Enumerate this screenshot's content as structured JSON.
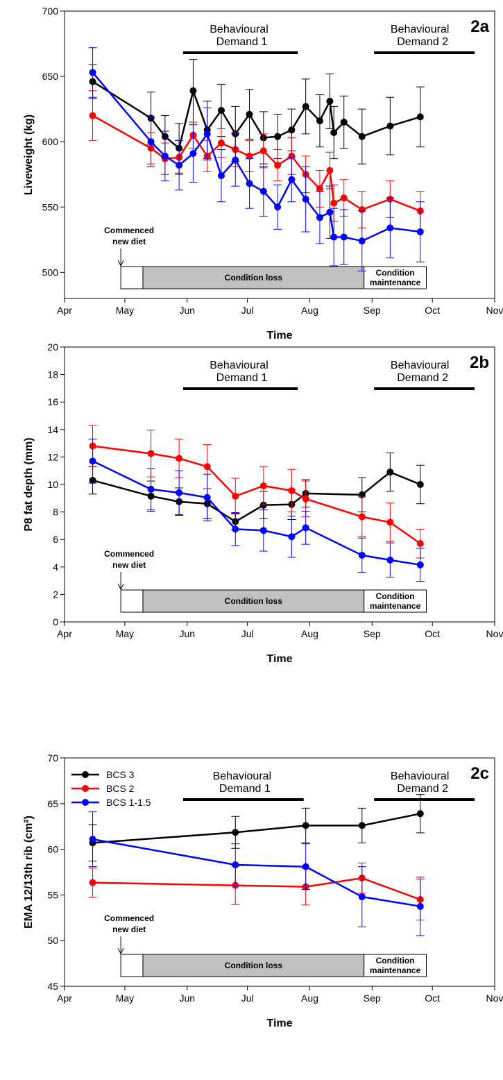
{
  "months": [
    "Apr",
    "May",
    "Jun",
    "Jul",
    "Aug",
    "Sep",
    "Oct",
    "Nov"
  ],
  "series_colors": {
    "BCS 3": "#000000",
    "BCS 2": "#ff0000",
    "BCS 1-1.5": "#0000ff"
  },
  "chart_data": [
    {
      "id": "2a",
      "panel_label": "2a",
      "type": "line",
      "xlabel": "Time",
      "ylabel": "Liveweight (kg)",
      "ylim": [
        480,
        700
      ],
      "yticks": [
        500,
        550,
        600,
        650,
        700
      ],
      "xlim": [
        "2000-04-01",
        "2000-11-01"
      ],
      "x_tick_labels": [
        "Apr",
        "May",
        "Jun",
        "Jul",
        "Aug",
        "Sep",
        "Oct",
        "Nov"
      ],
      "behavioural_demands": [
        {
          "label_line1": "Behavioural",
          "label_line2": "Demand 1",
          "start": "2000-05-30",
          "end": "2000-07-26"
        },
        {
          "label_line1": "Behavioural",
          "label_line2": "Demand 2",
          "start": "2000-09-02",
          "end": "2000-10-22"
        }
      ],
      "diet_annotation": {
        "line1": "Commenced",
        "line2": "new diet",
        "date": "2000-04-29"
      },
      "phases": [
        {
          "label": "",
          "start": "2000-04-29",
          "end": "2000-05-10",
          "fill": "#ffffff"
        },
        {
          "label": "Condition loss",
          "start": "2000-05-10",
          "end": "2000-08-28",
          "fill": "#c0c0c0"
        },
        {
          "label_line1": "Condition",
          "label_line2": "maintenance",
          "start": "2000-08-28",
          "end": "2000-09-28",
          "fill": "#ffffff"
        }
      ],
      "series": [
        {
          "name": "BCS 3",
          "points": [
            [
              "2000-04-15",
              646,
              13
            ],
            [
              "2000-05-14",
              618,
              20
            ],
            [
              "2000-05-21",
              604,
              16
            ],
            [
              "2000-05-28",
              595,
              19
            ],
            [
              "2000-06-04",
              639,
              24
            ],
            [
              "2000-06-11",
              609,
              22
            ],
            [
              "2000-06-18",
              624,
              20
            ],
            [
              "2000-06-25",
              606,
              21
            ],
            [
              "2000-07-02",
              621,
              19
            ],
            [
              "2000-07-09",
              603,
              20
            ],
            [
              "2000-07-16",
              604,
              17
            ],
            [
              "2000-07-23",
              609,
              16
            ],
            [
              "2000-07-30",
              627,
              21
            ],
            [
              "2000-08-06",
              616,
              20
            ],
            [
              "2000-08-11",
              631,
              21
            ],
            [
              "2000-08-13",
              607,
              20
            ],
            [
              "2000-08-18",
              615,
              20
            ],
            [
              "2000-08-27",
              604,
              21
            ],
            [
              "2000-09-10",
              612,
              22
            ],
            [
              "2000-09-25",
              619,
              23
            ]
          ]
        },
        {
          "name": "BCS 2",
          "points": [
            [
              "2000-04-15",
              620,
              19
            ],
            [
              "2000-05-14",
              595,
              12
            ],
            [
              "2000-05-21",
              587,
              12
            ],
            [
              "2000-05-28",
              588,
              13
            ],
            [
              "2000-06-04",
              605,
              10
            ],
            [
              "2000-06-11",
              589,
              12
            ],
            [
              "2000-06-18",
              599,
              11
            ],
            [
              "2000-06-25",
              594,
              13
            ],
            [
              "2000-07-02",
              589,
              12
            ],
            [
              "2000-07-09",
              593,
              13
            ],
            [
              "2000-07-16",
              582,
              12
            ],
            [
              "2000-07-23",
              589,
              14
            ],
            [
              "2000-07-30",
              575,
              14
            ],
            [
              "2000-08-06",
              564,
              14
            ],
            [
              "2000-08-11",
              578,
              14
            ],
            [
              "2000-08-13",
              553,
              14
            ],
            [
              "2000-08-18",
              557,
              14
            ],
            [
              "2000-08-27",
              548,
              14
            ],
            [
              "2000-09-10",
              556,
              14
            ],
            [
              "2000-09-25",
              547,
              15
            ]
          ]
        },
        {
          "name": "BCS 1-1.5",
          "points": [
            [
              "2000-04-15",
              653,
              19
            ],
            [
              "2000-05-14",
              600,
              19
            ],
            [
              "2000-05-21",
              589,
              19
            ],
            [
              "2000-05-28",
              582,
              19
            ],
            [
              "2000-06-04",
              591,
              22
            ],
            [
              "2000-06-11",
              606,
              20
            ],
            [
              "2000-06-18",
              574,
              20
            ],
            [
              "2000-06-25",
              586,
              20
            ],
            [
              "2000-07-02",
              568,
              19
            ],
            [
              "2000-07-09",
              562,
              19
            ],
            [
              "2000-07-16",
              550,
              17
            ],
            [
              "2000-07-23",
              571,
              17
            ],
            [
              "2000-07-30",
              556,
              25
            ],
            [
              "2000-08-06",
              542,
              20
            ],
            [
              "2000-08-11",
              546,
              20
            ],
            [
              "2000-08-13",
              527,
              22
            ],
            [
              "2000-08-18",
              527,
              21
            ],
            [
              "2000-08-27",
              524,
              23
            ],
            [
              "2000-09-10",
              534,
              23
            ],
            [
              "2000-09-25",
              531,
              23
            ]
          ]
        }
      ]
    },
    {
      "id": "2b",
      "panel_label": "2b",
      "type": "line",
      "xlabel": "Time",
      "ylabel": "P8 fat depth (mm)",
      "ylim": [
        0,
        20
      ],
      "yticks": [
        0,
        2,
        4,
        6,
        8,
        10,
        12,
        14,
        16,
        18,
        20
      ],
      "xlim": [
        "2000-04-01",
        "2000-11-01"
      ],
      "x_tick_labels": [
        "Apr",
        "May",
        "Jun",
        "Jul",
        "Aug",
        "Sep",
        "Oct",
        "Nov"
      ],
      "behavioural_demands": [
        {
          "label_line1": "Behavioural",
          "label_line2": "Demand 1",
          "start": "2000-05-30",
          "end": "2000-07-26"
        },
        {
          "label_line1": "Behavioural",
          "label_line2": "Demand 2",
          "start": "2000-09-02",
          "end": "2000-10-22"
        }
      ],
      "diet_annotation": {
        "line1": "Commenced",
        "line2": "new diet",
        "date": "2000-04-29"
      },
      "phases": [
        {
          "label": "",
          "start": "2000-04-29",
          "end": "2000-05-10",
          "fill": "#ffffff"
        },
        {
          "label": "Condition loss",
          "start": "2000-05-10",
          "end": "2000-08-28",
          "fill": "#c0c0c0"
        },
        {
          "label_line1": "Condition",
          "label_line2": "maintenance",
          "start": "2000-08-28",
          "end": "2000-09-28",
          "fill": "#ffffff"
        }
      ],
      "series": [
        {
          "name": "BCS 3",
          "points": [
            [
              "2000-04-15",
              10.3,
              1.0
            ],
            [
              "2000-05-14",
              9.15,
              1.1
            ],
            [
              "2000-05-28",
              8.75,
              1.0
            ],
            [
              "2000-06-11",
              8.6,
              1.1
            ],
            [
              "2000-06-25",
              7.3,
              0.6
            ],
            [
              "2000-07-09",
              8.5,
              1.0
            ],
            [
              "2000-07-23",
              8.55,
              1.1
            ],
            [
              "2000-07-30",
              9.35,
              1.0
            ],
            [
              "2000-08-27",
              9.25,
              1.25
            ],
            [
              "2000-09-10",
              10.9,
              1.4
            ],
            [
              "2000-09-25",
              10.0,
              1.4
            ]
          ]
        },
        {
          "name": "BCS 2",
          "points": [
            [
              "2000-04-15",
              12.8,
              1.5
            ],
            [
              "2000-05-14",
              12.25,
              1.7
            ],
            [
              "2000-05-28",
              11.9,
              1.4
            ],
            [
              "2000-06-11",
              11.3,
              1.6
            ],
            [
              "2000-06-25",
              9.15,
              1.3
            ],
            [
              "2000-07-09",
              9.9,
              1.4
            ],
            [
              "2000-07-23",
              9.55,
              1.55
            ],
            [
              "2000-07-30",
              8.95,
              1.3
            ],
            [
              "2000-08-27",
              7.65,
              1.45
            ],
            [
              "2000-09-10",
              7.25,
              1.4
            ],
            [
              "2000-09-25",
              5.7,
              1.05
            ]
          ]
        },
        {
          "name": "BCS 1-1.5",
          "points": [
            [
              "2000-04-15",
              11.7,
              1.6
            ],
            [
              "2000-05-14",
              9.65,
              1.5
            ],
            [
              "2000-05-28",
              9.4,
              1.6
            ],
            [
              "2000-06-11",
              9.05,
              1.7
            ],
            [
              "2000-06-25",
              6.75,
              1.2
            ],
            [
              "2000-07-09",
              6.65,
              1.5
            ],
            [
              "2000-07-23",
              6.2,
              1.5
            ],
            [
              "2000-07-30",
              6.85,
              1.2
            ],
            [
              "2000-08-27",
              4.85,
              1.25
            ],
            [
              "2000-09-10",
              4.5,
              1.25
            ],
            [
              "2000-09-25",
              4.15,
              1.2
            ]
          ]
        }
      ]
    },
    {
      "id": "2c",
      "panel_label": "2c",
      "type": "line",
      "xlabel": "Time",
      "ylabel": "EMA 12/13th rib (cm²)",
      "ylim": [
        45,
        70
      ],
      "yticks": [
        45,
        50,
        55,
        60,
        65,
        70
      ],
      "xlim": [
        "2000-04-01",
        "2000-11-01"
      ],
      "x_tick_labels": [
        "Apr",
        "May",
        "Jun",
        "Jul",
        "Aug",
        "Sep",
        "Oct",
        "Nov"
      ],
      "legend": {
        "placement": "top-left",
        "entries": [
          "BCS 3",
          "BCS 2",
          "BCS 1-1.5"
        ]
      },
      "behavioural_demands": [
        {
          "label_line1": "Behavioural",
          "label_line2": "Demand 1",
          "start": "2000-05-30",
          "end": "2000-07-29"
        },
        {
          "label_line1": "Behavioural",
          "label_line2": "Demand 2",
          "start": "2000-09-02",
          "end": "2000-10-22"
        }
      ],
      "diet_annotation": {
        "line1": "Commenced",
        "line2": "new diet",
        "date": "2000-04-29"
      },
      "phases": [
        {
          "label": "",
          "start": "2000-04-29",
          "end": "2000-05-10",
          "fill": "#ffffff"
        },
        {
          "label": "Condition loss",
          "start": "2000-05-10",
          "end": "2000-08-28",
          "fill": "#c0c0c0"
        },
        {
          "label_line1": "Condition",
          "label_line2": "maintenance",
          "start": "2000-08-28",
          "end": "2000-09-28",
          "fill": "#ffffff"
        }
      ],
      "series": [
        {
          "name": "BCS 3",
          "points": [
            [
              "2000-04-15",
              60.7,
              2.0
            ],
            [
              "2000-06-25",
              61.85,
              1.75
            ],
            [
              "2000-07-30",
              62.6,
              1.9
            ],
            [
              "2000-08-27",
              62.6,
              1.9
            ],
            [
              "2000-09-25",
              63.9,
              2.1
            ]
          ]
        },
        {
          "name": "BCS 2",
          "points": [
            [
              "2000-04-15",
              56.35,
              1.6
            ],
            [
              "2000-06-25",
              56.05,
              2.1
            ],
            [
              "2000-07-30",
              55.9,
              2.0
            ],
            [
              "2000-08-27",
              56.85,
              1.65
            ],
            [
              "2000-09-25",
              54.5,
              2.25
            ]
          ]
        },
        {
          "name": "BCS 1-1.5",
          "points": [
            [
              "2000-04-15",
              61.1,
              3.0
            ],
            [
              "2000-06-25",
              58.3,
              2.3
            ],
            [
              "2000-07-30",
              58.1,
              2.5
            ],
            [
              "2000-08-27",
              54.8,
              3.3
            ],
            [
              "2000-09-25",
              53.75,
              3.2
            ]
          ]
        }
      ]
    }
  ]
}
